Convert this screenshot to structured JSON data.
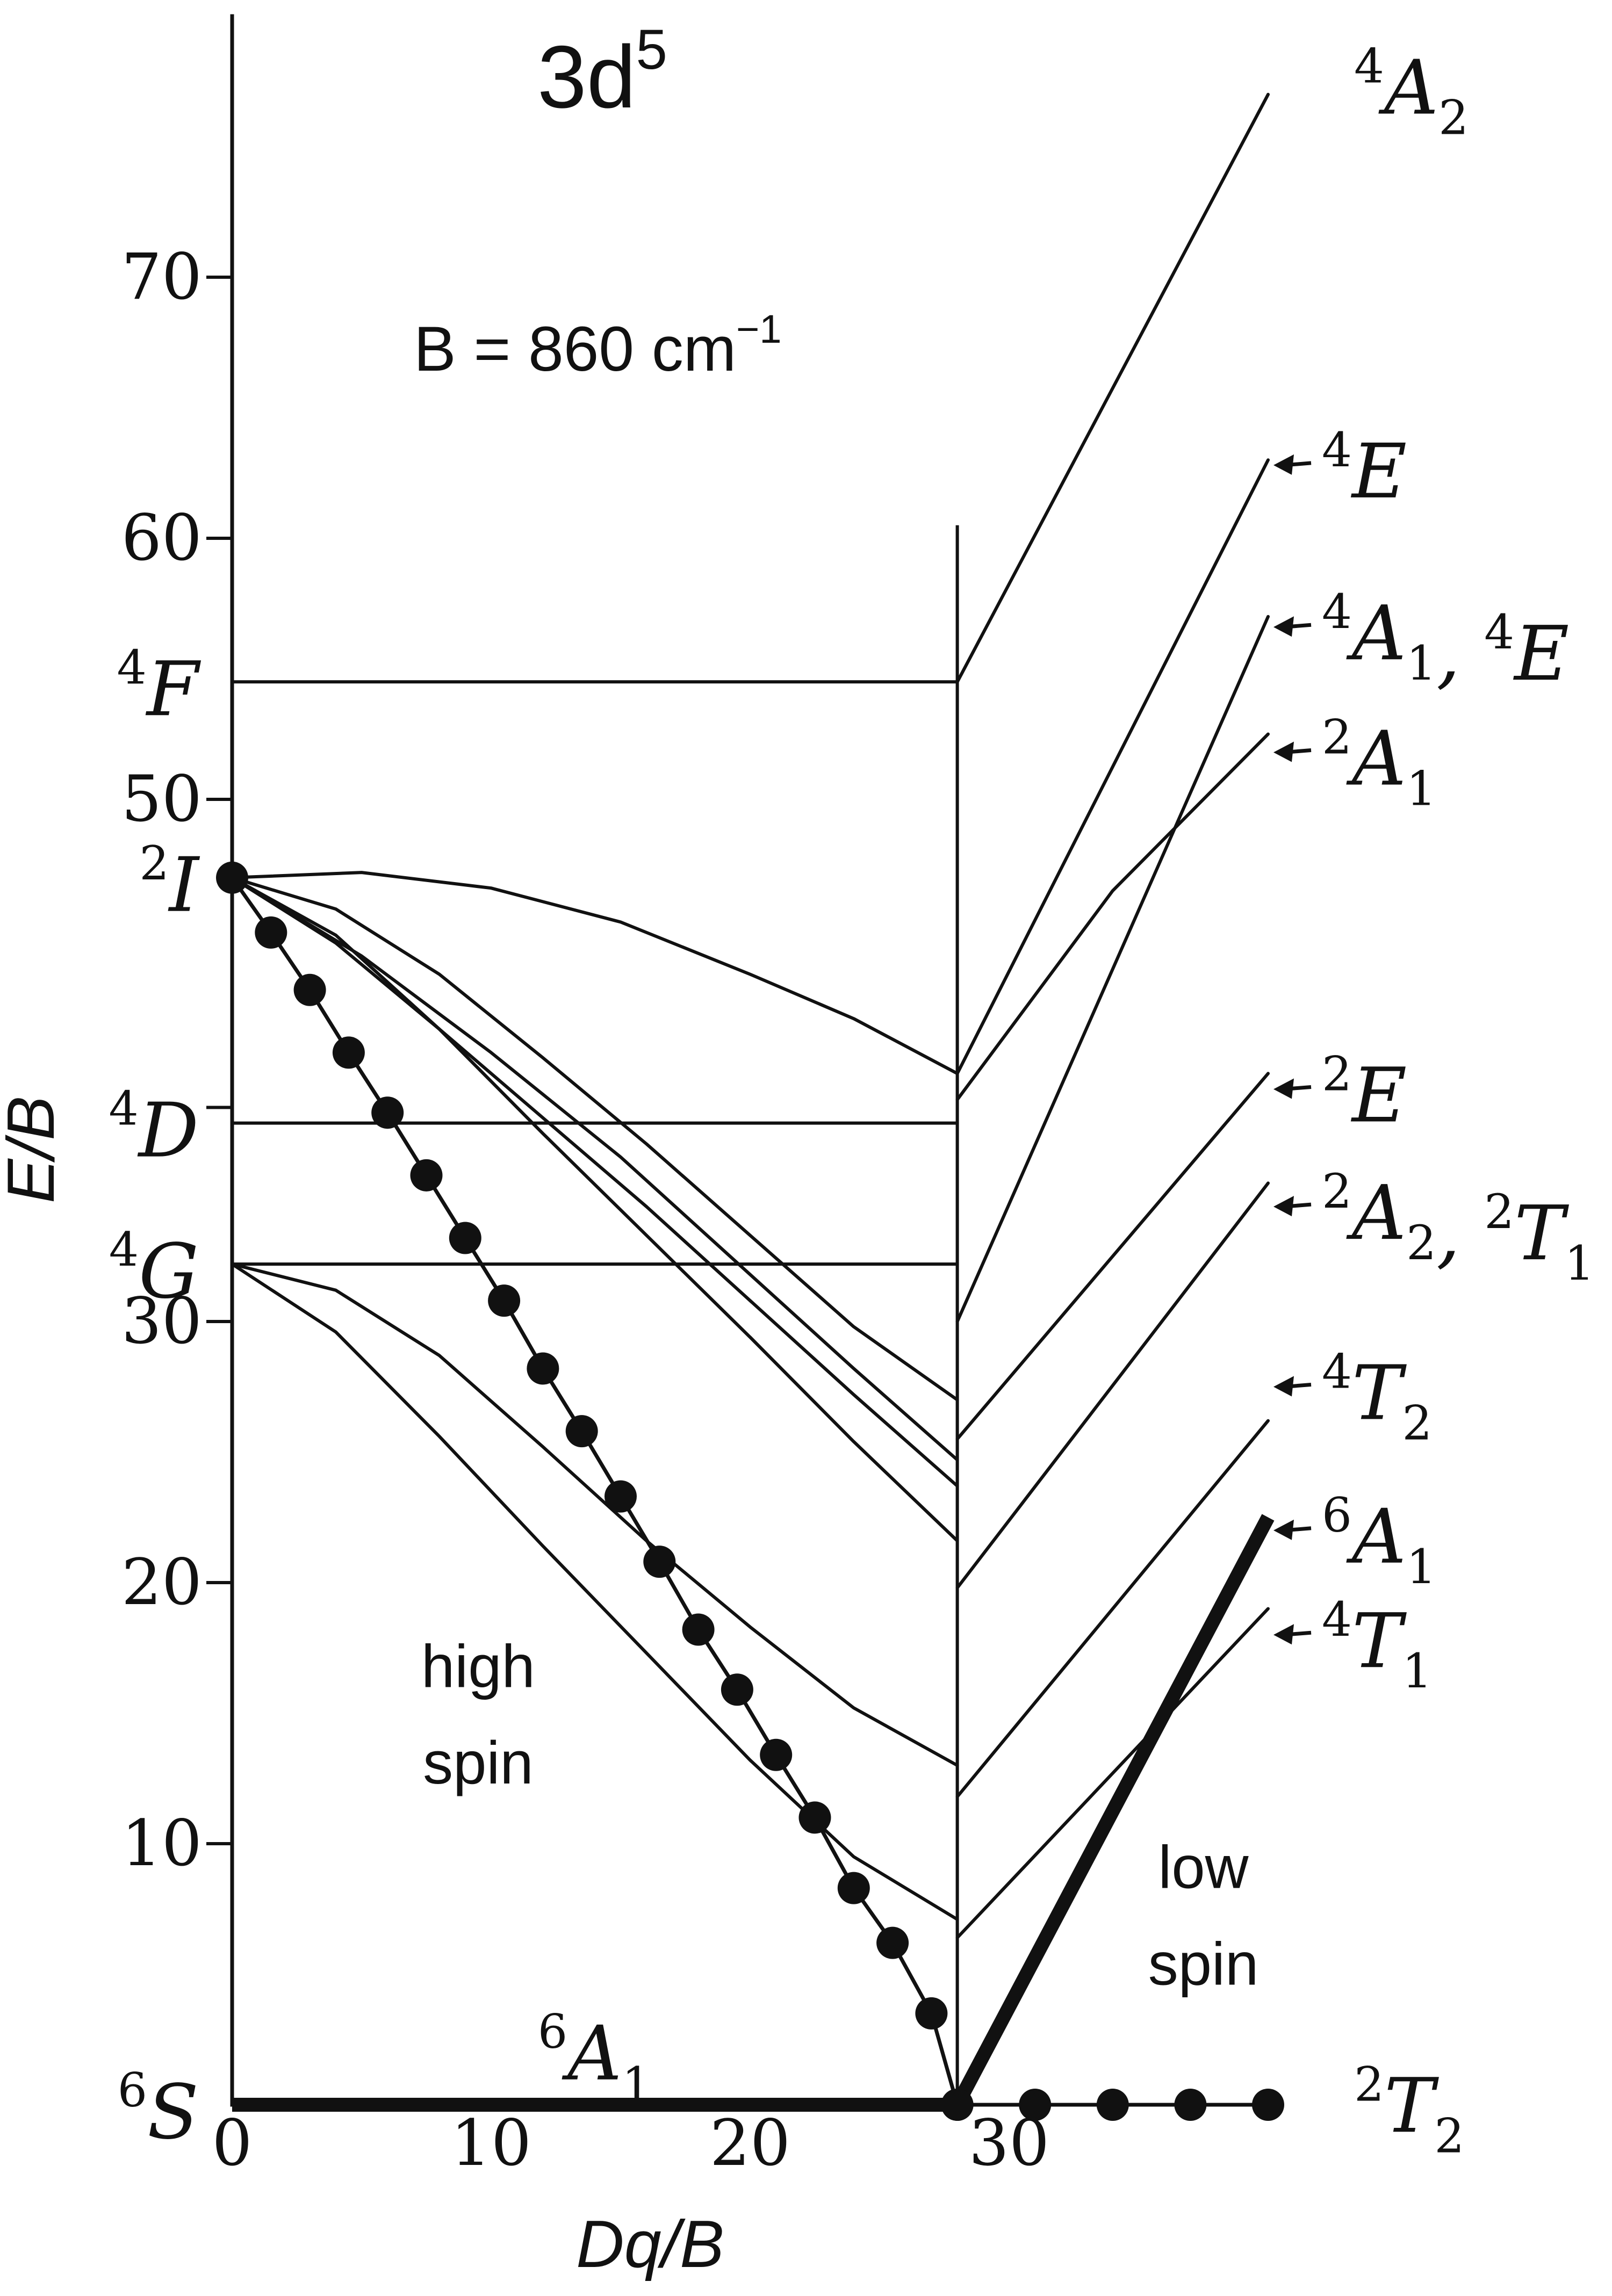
{
  "chart_data": {
    "type": "line",
    "title": "3d",
    "title_superscript": "5",
    "subtitle": "B = 860 cm",
    "subtitle_superscript": "−1",
    "xlabel": "Dq/B",
    "ylabel": "E/B",
    "xlim": [
      0,
      40
    ],
    "ylim": [
      0,
      80
    ],
    "crossover_dq": 28,
    "x_ticks": [
      {
        "value": 0,
        "label": "0"
      },
      {
        "value": 10,
        "label": "10"
      },
      {
        "value": 20,
        "label": "20"
      },
      {
        "value": 30,
        "label": "30"
      }
    ],
    "y_ticks": [
      {
        "value": 10,
        "label": "10"
      },
      {
        "value": 20,
        "label": "20"
      },
      {
        "value": 30,
        "label": "30"
      },
      {
        "value": 50,
        "label": "50"
      },
      {
        "value": 60,
        "label": "60"
      },
      {
        "value": 70,
        "label": "70"
      }
    ],
    "free_ion_terms": [
      {
        "sup": "6",
        "sym": "S",
        "sub": "",
        "y": 0
      },
      {
        "sup": "4",
        "sym": "G",
        "sub": "",
        "y": 32.2
      },
      {
        "sup": "4",
        "sym": "D",
        "sub": "",
        "y": 37.6
      },
      {
        "sup": "2",
        "sym": "I",
        "sub": "",
        "y": 47
      },
      {
        "sup": "4",
        "sym": "F",
        "sub": "",
        "y": 54.5
      }
    ],
    "annotations": [
      {
        "text": "high",
        "x": 9.5,
        "y": 16
      },
      {
        "text": "spin",
        "x": 9.5,
        "y": 12.3
      },
      {
        "text": "low",
        "x": 37.5,
        "y": 8.3
      },
      {
        "text": "spin",
        "x": 37.5,
        "y": 4.6
      }
    ],
    "series": [
      {
        "id": "4A2",
        "style": "thin",
        "x": [
          28,
          40
        ],
        "y": [
          54.5,
          77
        ]
      },
      {
        "id": "4F-flat",
        "style": "thin",
        "x": [
          0,
          28
        ],
        "y": [
          54.5,
          54.5
        ]
      },
      {
        "id": "4D-flat",
        "style": "thin",
        "x": [
          0,
          28
        ],
        "y": [
          37.6,
          37.6
        ]
      },
      {
        "id": "4G-flat",
        "style": "thin",
        "x": [
          0,
          28
        ],
        "y": [
          32.2,
          32.2
        ]
      },
      {
        "id": "2I-top",
        "style": "thin",
        "x": [
          0,
          5,
          10,
          15,
          20,
          24,
          28
        ],
        "y": [
          47,
          47.2,
          46.6,
          45.3,
          43.3,
          41.6,
          39.5
        ]
      },
      {
        "id": "2I-c",
        "style": "thin",
        "x": [
          0,
          4,
          8,
          12,
          16,
          20,
          24,
          28
        ],
        "y": [
          47,
          45.8,
          43.3,
          40.1,
          36.8,
          33.3,
          29.8,
          27
        ]
      },
      {
        "id": "2I-d",
        "style": "thin",
        "x": [
          0,
          4,
          8,
          12,
          16,
          20,
          24,
          28
        ],
        "y": [
          47,
          44.8,
          41.2,
          37.2,
          33.3,
          29.4,
          25.4,
          21.6
        ]
      },
      {
        "id": "2I-e",
        "style": "thin",
        "x": [
          0,
          4,
          8,
          12,
          16,
          20,
          24,
          28
        ],
        "y": [
          47,
          44.5,
          41.2,
          37.8,
          34.4,
          30.8,
          27.2,
          23.7
        ]
      },
      {
        "id": "2I-b",
        "style": "thin",
        "x": [
          0,
          5,
          10,
          15,
          20,
          24,
          28
        ],
        "y": [
          47,
          44,
          40.3,
          36.3,
          31.8,
          28.2,
          24.7
        ]
      },
      {
        "id": "4G-a",
        "style": "thin",
        "x": [
          0,
          4,
          8,
          12,
          16,
          20,
          24,
          28
        ],
        "y": [
          32.2,
          31.2,
          28.7,
          25.2,
          21.6,
          18.3,
          15.2,
          13
        ]
      },
      {
        "id": "4G-b",
        "style": "thin",
        "x": [
          0,
          4,
          8,
          12,
          16,
          20,
          24,
          28
        ],
        "y": [
          32.2,
          29.6,
          25.6,
          21.4,
          17.3,
          13.2,
          9.5,
          7.1
        ]
      },
      {
        "id": "4E-top",
        "style": "thin",
        "x": [
          28,
          40
        ],
        "y": [
          39.5,
          63
        ]
      },
      {
        "id": "4A1-4E",
        "style": "thin",
        "x": [
          28,
          40
        ],
        "y": [
          30,
          57
        ]
      },
      {
        "id": "2A1",
        "style": "thin",
        "x": [
          28,
          34,
          40
        ],
        "y": [
          38.5,
          46.5,
          52.5
        ]
      },
      {
        "id": "2E",
        "style": "thin",
        "x": [
          28,
          40
        ],
        "y": [
          25.5,
          39.5
        ]
      },
      {
        "id": "2A2-2T1",
        "style": "thin",
        "x": [
          28,
          40
        ],
        "y": [
          19.8,
          35.3
        ]
      },
      {
        "id": "4T2",
        "style": "thin",
        "x": [
          28,
          40
        ],
        "y": [
          11.8,
          26.2
        ]
      },
      {
        "id": "4T1",
        "style": "thin",
        "x": [
          28,
          40
        ],
        "y": [
          6.4,
          19
        ]
      },
      {
        "id": "6A1-ground",
        "style": "thick",
        "x": [
          0,
          28
        ],
        "y": [
          0,
          0
        ]
      },
      {
        "id": "6A1-low-spin",
        "style": "thick",
        "x": [
          28,
          40
        ],
        "y": [
          0,
          22.5
        ]
      },
      {
        "id": "2T2-high-spin",
        "style": "dotted",
        "x": [
          0,
          1.5,
          3,
          4.5,
          6,
          7.5,
          9,
          10.5,
          12,
          13.5,
          15,
          16.5,
          18,
          19.5,
          21,
          22.5,
          24,
          25.5,
          27,
          28
        ],
        "y": [
          47,
          44.9,
          42.7,
          40.3,
          38,
          35.6,
          33.2,
          30.8,
          28.2,
          25.8,
          23.3,
          20.8,
          18.2,
          15.9,
          13.4,
          11,
          8.3,
          6.2,
          3.5,
          0
        ]
      },
      {
        "id": "2T2-low-spin",
        "style": "dotted",
        "x": [
          28,
          31,
          34,
          37,
          40
        ],
        "y": [
          0,
          0,
          0,
          0,
          0
        ]
      }
    ],
    "right_labels": [
      {
        "sup": [
          "4"
        ],
        "parts": [
          {
            "sym": "A",
            "sub": "2"
          }
        ],
        "y": 77.5,
        "arrow": false
      },
      {
        "sup": [
          "4"
        ],
        "parts": [
          {
            "sym": "E",
            "sub": ""
          }
        ],
        "y": 62.8,
        "arrow": true
      },
      {
        "sup": [
          "4",
          "4"
        ],
        "parts": [
          {
            "sym": "A",
            "sub": "1"
          },
          {
            "sym": "E",
            "sub": ""
          }
        ],
        "y": 56.6,
        "arrow": true
      },
      {
        "sup": [
          "2"
        ],
        "parts": [
          {
            "sym": "A",
            "sub": "1"
          }
        ],
        "y": 51.8,
        "arrow": true
      },
      {
        "sup": [
          "2"
        ],
        "parts": [
          {
            "sym": "E",
            "sub": ""
          }
        ],
        "y": 38.9,
        "arrow": true
      },
      {
        "sup": [
          "2",
          "2"
        ],
        "parts": [
          {
            "sym": "A",
            "sub": "2"
          },
          {
            "sym": "T",
            "sub": "1"
          }
        ],
        "y": 34.4,
        "arrow": true
      },
      {
        "sup": [
          "4"
        ],
        "parts": [
          {
            "sym": "T",
            "sub": "2"
          }
        ],
        "y": 27.5,
        "arrow": true
      },
      {
        "sup": [
          "6"
        ],
        "parts": [
          {
            "sym": "A",
            "sub": "1"
          }
        ],
        "y": 22,
        "arrow": true
      },
      {
        "sup": [
          "4"
        ],
        "parts": [
          {
            "sym": "T",
            "sub": "1"
          }
        ],
        "y": 18,
        "arrow": true
      },
      {
        "sup": [
          "2"
        ],
        "parts": [
          {
            "sym": "T",
            "sub": "2"
          }
        ],
        "y": 0.2,
        "arrow": false
      }
    ],
    "ground_label": {
      "sup": "6",
      "sym": "A",
      "sub": "1",
      "x": 14,
      "y": 2
    },
    "grid": false,
    "legend": "none"
  }
}
